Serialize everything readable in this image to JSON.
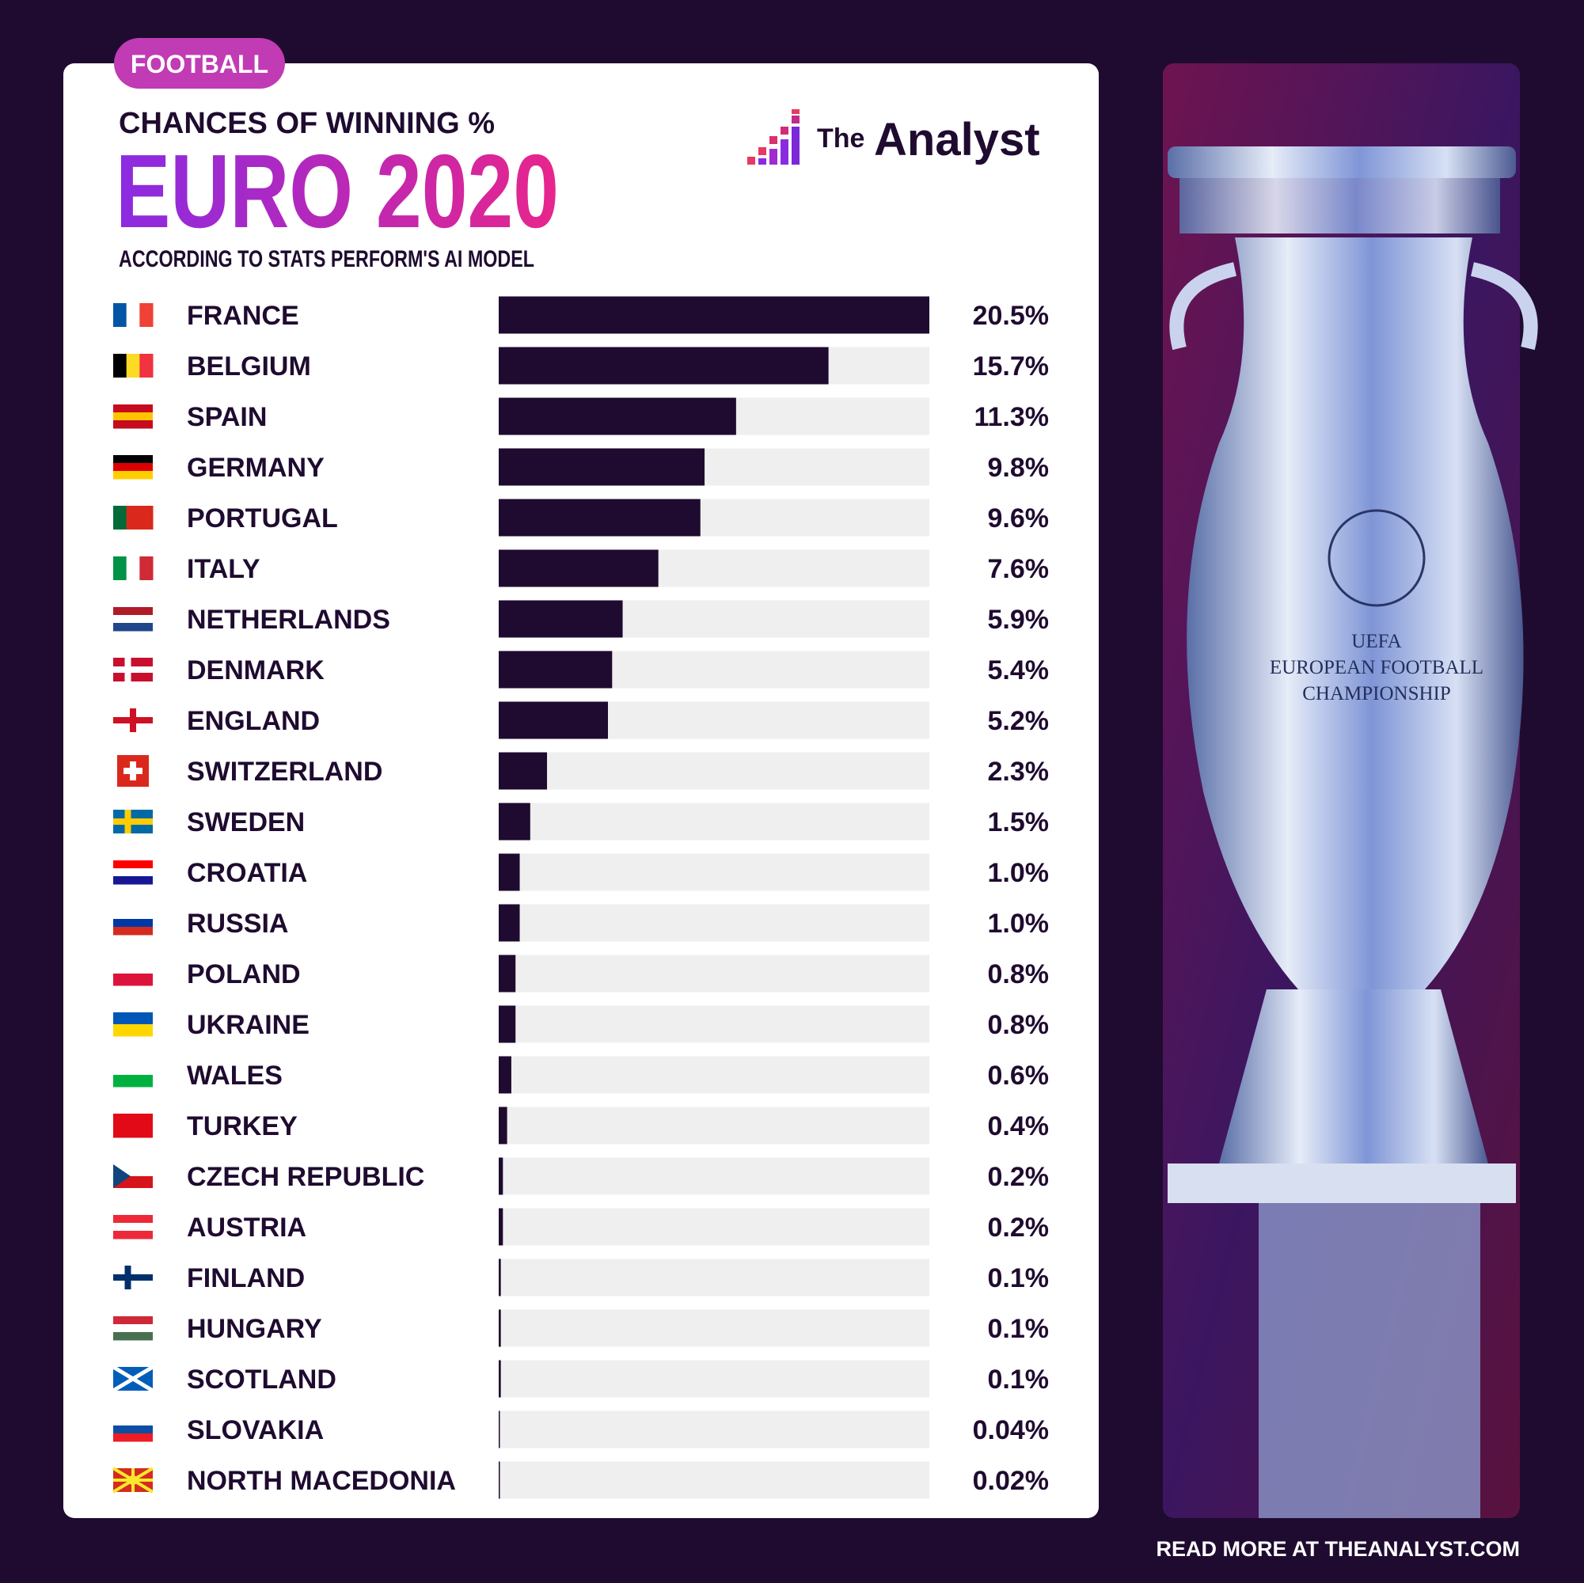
{
  "chart_data": {
    "type": "bar",
    "orientation": "horizontal",
    "tag": "FOOTBALL",
    "kicker": "CHANCES OF WINNING %",
    "title": "EURO 2020",
    "subtitle": "ACCORDING TO STATS PERFORM'S AI MODEL",
    "brand_prefix": "The",
    "brand": "Analyst",
    "footer": "READ MORE AT THEANALYST.COM",
    "image_text": [
      "UEFA",
      "EUROPEAN FOOTBALL",
      "CHAMPIONSHIP"
    ],
    "color": "#1e0b2f",
    "track_color": "#efefef",
    "xlim": [
      0,
      20.5
    ],
    "categories": [
      "FRANCE",
      "BELGIUM",
      "SPAIN",
      "GERMANY",
      "PORTUGAL",
      "ITALY",
      "NETHERLANDS",
      "DENMARK",
      "ENGLAND",
      "SWITZERLAND",
      "SWEDEN",
      "CROATIA",
      "RUSSIA",
      "POLAND",
      "UKRAINE",
      "WALES",
      "TURKEY",
      "CZECH REPUBLIC",
      "AUSTRIA",
      "FINLAND",
      "HUNGARY",
      "SCOTLAND",
      "SLOVAKIA",
      "NORTH MACEDONIA"
    ],
    "values": [
      20.5,
      15.7,
      11.3,
      9.8,
      9.6,
      7.6,
      5.9,
      5.4,
      5.2,
      2.3,
      1.5,
      1.0,
      1.0,
      0.8,
      0.8,
      0.6,
      0.4,
      0.2,
      0.2,
      0.1,
      0.1,
      0.1,
      0.04,
      0.02
    ],
    "value_labels": [
      "20.5%",
      "15.7%",
      "11.3%",
      "9.8%",
      "9.6%",
      "7.6%",
      "5.9%",
      "5.4%",
      "5.2%",
      "2.3%",
      "1.5%",
      "1.0%",
      "1.0%",
      "0.8%",
      "0.8%",
      "0.6%",
      "0.4%",
      "0.2%",
      "0.2%",
      "0.1%",
      "0.1%",
      "0.1%",
      "0.04%",
      "0.02%"
    ]
  }
}
